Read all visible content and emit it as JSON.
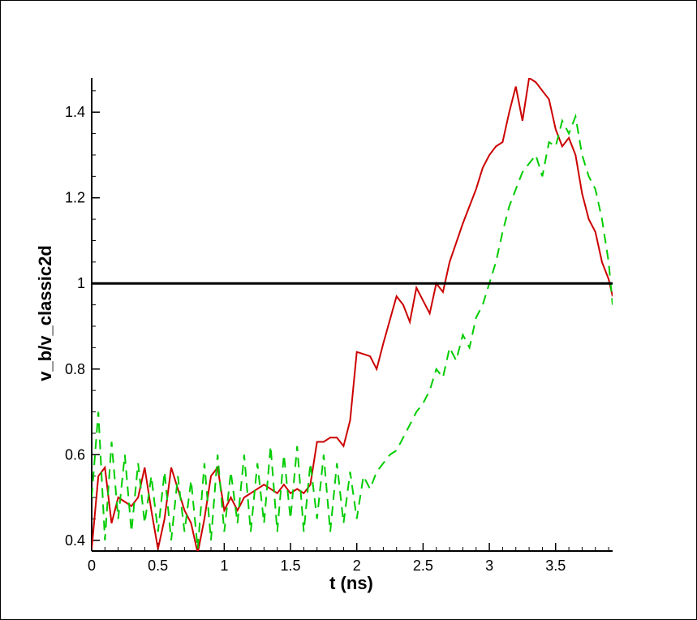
{
  "chart_data": {
    "type": "line",
    "title": "",
    "xlabel": "t (ns)",
    "ylabel": "v_b/v_classic2d",
    "xlim": [
      0,
      3.93
    ],
    "ylim": [
      0.375,
      1.48
    ],
    "xticks": [
      0,
      0.5,
      1,
      1.5,
      2,
      2.5,
      3,
      3.5
    ],
    "xtick_labels": [
      "0",
      "0.5",
      "1",
      "1.5",
      "2",
      "2.5",
      "3",
      "3.5"
    ],
    "yticks": [
      0.4,
      0.6,
      0.8,
      1.0,
      1.2,
      1.4
    ],
    "ytick_labels": [
      "0.4",
      "0.6",
      "0.8",
      "1",
      "1.2",
      "1.4"
    ],
    "grid": false,
    "colors": {
      "red": "#cc0000",
      "green": "#00cc00",
      "black": "#000000"
    },
    "series": [
      {
        "style": "solid",
        "color": "#cc0000",
        "x": [
          0,
          0.05,
          0.1,
          0.15,
          0.2,
          0.3,
          0.35,
          0.4,
          0.45,
          0.5,
          0.55,
          0.6,
          0.65,
          0.7,
          0.75,
          0.8,
          0.85,
          0.9,
          0.95,
          1.0,
          1.05,
          1.1,
          1.15,
          1.2,
          1.3,
          1.4,
          1.45,
          1.5,
          1.55,
          1.6,
          1.65,
          1.7,
          1.75,
          1.8,
          1.85,
          1.9,
          1.95,
          2.0,
          2.1,
          2.15,
          2.2,
          2.3,
          2.35,
          2.4,
          2.45,
          2.5,
          2.55,
          2.6,
          2.65,
          2.7,
          2.8,
          2.9,
          2.95,
          3.0,
          3.05,
          3.1,
          3.15,
          3.2,
          3.25,
          3.3,
          3.35,
          3.4,
          3.45,
          3.5,
          3.55,
          3.6,
          3.65,
          3.7,
          3.75,
          3.8,
          3.85,
          3.9,
          3.93
        ],
        "y": [
          0.38,
          0.55,
          0.57,
          0.44,
          0.5,
          0.48,
          0.5,
          0.57,
          0.47,
          0.38,
          0.45,
          0.57,
          0.52,
          0.47,
          0.44,
          0.37,
          0.45,
          0.55,
          0.57,
          0.47,
          0.5,
          0.47,
          0.5,
          0.51,
          0.53,
          0.51,
          0.53,
          0.51,
          0.52,
          0.51,
          0.53,
          0.63,
          0.63,
          0.64,
          0.64,
          0.62,
          0.68,
          0.84,
          0.83,
          0.8,
          0.86,
          0.97,
          0.95,
          0.91,
          0.99,
          0.96,
          0.93,
          1.0,
          0.98,
          1.05,
          1.14,
          1.22,
          1.27,
          1.3,
          1.32,
          1.33,
          1.4,
          1.46,
          1.38,
          1.48,
          1.47,
          1.45,
          1.43,
          1.36,
          1.32,
          1.34,
          1.3,
          1.21,
          1.15,
          1.12,
          1.05,
          1.01,
          0.97
        ]
      },
      {
        "style": "dashed",
        "color": "#00cc00",
        "x": [
          0,
          0.05,
          0.1,
          0.15,
          0.2,
          0.25,
          0.3,
          0.35,
          0.4,
          0.45,
          0.5,
          0.55,
          0.6,
          0.65,
          0.7,
          0.75,
          0.8,
          0.85,
          0.9,
          0.95,
          1.0,
          1.05,
          1.1,
          1.15,
          1.2,
          1.25,
          1.3,
          1.35,
          1.4,
          1.45,
          1.5,
          1.55,
          1.6,
          1.65,
          1.7,
          1.75,
          1.8,
          1.85,
          1.9,
          1.95,
          2.0,
          2.05,
          2.1,
          2.15,
          2.2,
          2.25,
          2.3,
          2.35,
          2.4,
          2.45,
          2.5,
          2.55,
          2.6,
          2.65,
          2.7,
          2.75,
          2.8,
          2.85,
          2.9,
          2.95,
          3.0,
          3.05,
          3.1,
          3.15,
          3.2,
          3.25,
          3.3,
          3.35,
          3.4,
          3.45,
          3.5,
          3.55,
          3.6,
          3.65,
          3.7,
          3.75,
          3.8,
          3.85,
          3.9,
          3.93
        ],
        "y": [
          0.5,
          0.7,
          0.4,
          0.63,
          0.45,
          0.6,
          0.42,
          0.58,
          0.44,
          0.55,
          0.42,
          0.56,
          0.4,
          0.55,
          0.42,
          0.54,
          0.38,
          0.58,
          0.4,
          0.6,
          0.42,
          0.56,
          0.44,
          0.6,
          0.42,
          0.58,
          0.44,
          0.62,
          0.42,
          0.6,
          0.45,
          0.62,
          0.42,
          0.58,
          0.45,
          0.6,
          0.42,
          0.58,
          0.44,
          0.56,
          0.45,
          0.55,
          0.52,
          0.56,
          0.58,
          0.6,
          0.61,
          0.64,
          0.67,
          0.7,
          0.72,
          0.75,
          0.8,
          0.78,
          0.85,
          0.82,
          0.88,
          0.85,
          0.92,
          0.95,
          1.0,
          1.05,
          1.12,
          1.18,
          1.22,
          1.26,
          1.28,
          1.3,
          1.25,
          1.33,
          1.32,
          1.38,
          1.35,
          1.39,
          1.3,
          1.25,
          1.22,
          1.15,
          1.05,
          0.95
        ]
      },
      {
        "style": "solid",
        "color": "#000000",
        "x": [
          0,
          3.93
        ],
        "y": [
          1.0,
          1.0
        ]
      }
    ]
  }
}
